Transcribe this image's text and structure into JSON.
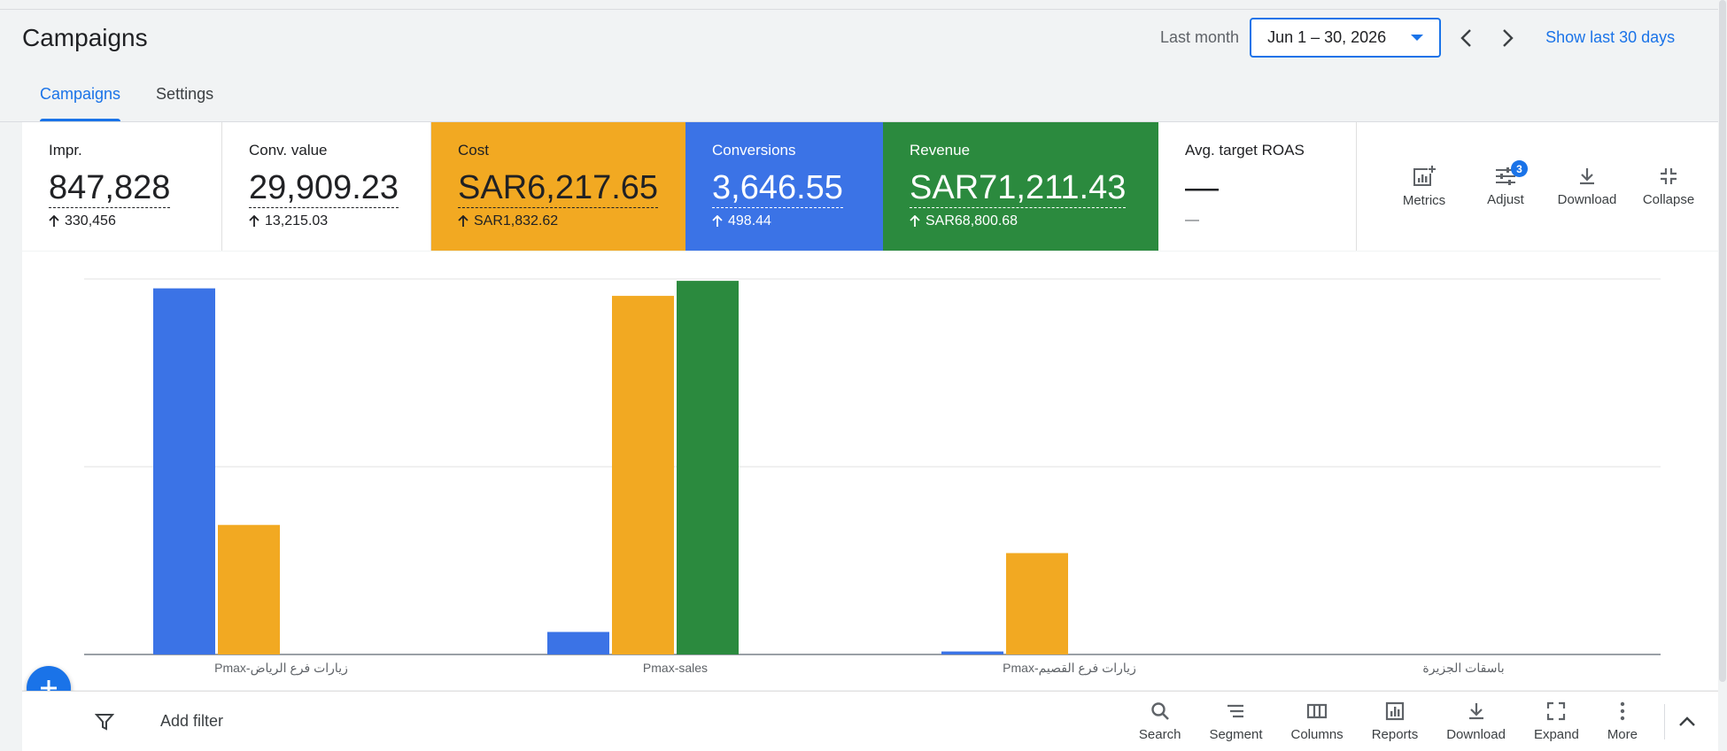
{
  "header": {
    "title": "Campaigns",
    "date_label": "Last month",
    "date_range": "Jun 1 – 30, 2026",
    "show_last": "Show last 30 days"
  },
  "tabs": [
    {
      "label": "Campaigns"
    },
    {
      "label": "Settings"
    }
  ],
  "scorecards": [
    {
      "label": "Impr.",
      "value": "847,828",
      "delta": "330,456",
      "bg": "#ffffff",
      "fg": "#202124"
    },
    {
      "label": "Conv. value",
      "value": "29,909.23",
      "delta": "13,215.03",
      "bg": "#ffffff",
      "fg": "#202124"
    },
    {
      "label": "Cost",
      "value": "SAR6,217.65",
      "delta": "SAR1,832.62",
      "bg": "#f2a922",
      "fg": "#202124"
    },
    {
      "label": "Conversions",
      "value": "3,646.55",
      "delta": "498.44",
      "bg": "#3b73e6",
      "fg": "#ffffff"
    },
    {
      "label": "Revenue",
      "value": "SAR71,211.43",
      "delta": "SAR68,800.68",
      "bg": "#2b8a3e",
      "fg": "#ffffff"
    },
    {
      "label": "Avg. target ROAS",
      "value": "—",
      "delta": "—",
      "bg": "#ffffff",
      "fg": "#202124"
    }
  ],
  "card_tools": {
    "metrics": "Metrics",
    "adjust": "Adjust",
    "adjust_badge": "3",
    "download": "Download",
    "collapse": "Collapse"
  },
  "chart_data": {
    "type": "bar",
    "categories": [
      "Pmax-زيارات فرع الرياض",
      "Pmax-sales",
      "Pmax-زيارات فرع القصيم",
      "باسقات الجزيرة"
    ],
    "series": [
      {
        "color": "#3b73e6",
        "values": [
          0.975,
          0.06,
          0.008,
          0
        ]
      },
      {
        "color": "#f2a922",
        "values": [
          0.345,
          0.955,
          0.27,
          0
        ]
      },
      {
        "color": "#2b8a3e",
        "values": [
          0,
          0.995,
          0,
          0
        ]
      }
    ],
    "ylim": [
      0,
      1
    ],
    "grid": true
  },
  "bottom_bar": {
    "add_filter": "Add filter",
    "tools": {
      "search": "Search",
      "segment": "Segment",
      "columns": "Columns",
      "reports": "Reports",
      "download": "Download",
      "expand": "Expand",
      "more": "More"
    }
  }
}
